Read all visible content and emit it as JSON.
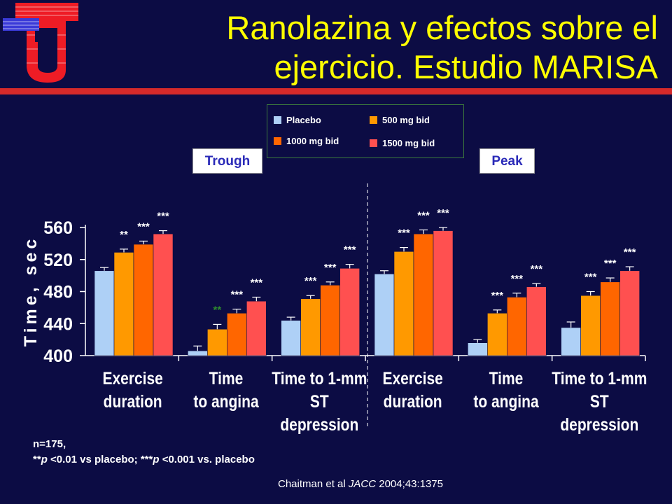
{
  "title": {
    "line1": "Ranolazina y efectos sobre el",
    "line2": "ejercicio. Estudio MARISA"
  },
  "legend": {
    "items": [
      {
        "label": "Placebo",
        "color": "#aed0f6"
      },
      {
        "label": "500 mg bid",
        "color": "#ff9900"
      },
      {
        "label": "1000 mg bid",
        "color": "#ff6600"
      },
      {
        "label": "1500 mg bid",
        "color": "#ff5050"
      }
    ]
  },
  "panels": {
    "trough": "Trough",
    "peak": "Peak"
  },
  "footnote": {
    "line1": "n=175,",
    "line2_a": "**",
    "line2_b": "p",
    "line2_c": " <0.01 vs placebo; ***",
    "line2_d": "p",
    "line2_e": " <0.001 vs. placebo"
  },
  "citation": {
    "authors": "Chaitman et al ",
    "journal": "JACC",
    "ref": " 2004;43:1375"
  },
  "chart_data": {
    "type": "bar",
    "ylabel": "Time, sec",
    "ylim": [
      400,
      560
    ],
    "yticks": [
      400,
      440,
      480,
      520,
      560
    ],
    "groups": [
      {
        "label": [
          "Exercise",
          "duration"
        ],
        "panel": "Trough",
        "values": [
          506,
          529,
          539,
          552
        ],
        "errors": [
          4,
          4,
          4,
          4
        ],
        "sig": [
          "",
          "**",
          "***",
          "***"
        ]
      },
      {
        "label": [
          "Time",
          "to angina"
        ],
        "panel": "Trough",
        "values": [
          406,
          433,
          453,
          468
        ],
        "errors": [
          6,
          6,
          5,
          5
        ],
        "sig": [
          "",
          "**",
          "***",
          "***"
        ]
      },
      {
        "label": [
          "Time to 1-mm",
          "ST",
          "depression"
        ],
        "panel": "Trough",
        "values": [
          444,
          471,
          488,
          509
        ],
        "errors": [
          4,
          4,
          4,
          5
        ],
        "sig": [
          "",
          "***",
          "***",
          "***"
        ]
      },
      {
        "label": [
          "Exercise",
          "duration"
        ],
        "panel": "Peak",
        "values": [
          502,
          530,
          552,
          556
        ],
        "errors": [
          4,
          5,
          5,
          4
        ],
        "sig": [
          "",
          "***",
          "***",
          "***"
        ]
      },
      {
        "label": [
          "Time",
          "to angina"
        ],
        "panel": "Peak",
        "values": [
          416,
          453,
          473,
          486
        ],
        "errors": [
          4,
          4,
          5,
          4
        ],
        "sig": [
          "",
          "***",
          "***",
          "***"
        ]
      },
      {
        "label": [
          "Time to 1-mm",
          "ST",
          "depression"
        ],
        "panel": "Peak",
        "values": [
          435,
          475,
          492,
          506
        ],
        "errors": [
          7,
          5,
          5,
          5
        ],
        "sig": [
          "",
          "***",
          "***",
          "***"
        ]
      }
    ],
    "series": [
      {
        "name": "Placebo",
        "color": "#aed0f6"
      },
      {
        "name": "500 mg bid",
        "color": "#ff9900"
      },
      {
        "name": "1000 mg bid",
        "color": "#ff6600"
      },
      {
        "name": "1500 mg bid",
        "color": "#ff5050"
      }
    ],
    "legend_position": "top-center",
    "grid": false
  }
}
